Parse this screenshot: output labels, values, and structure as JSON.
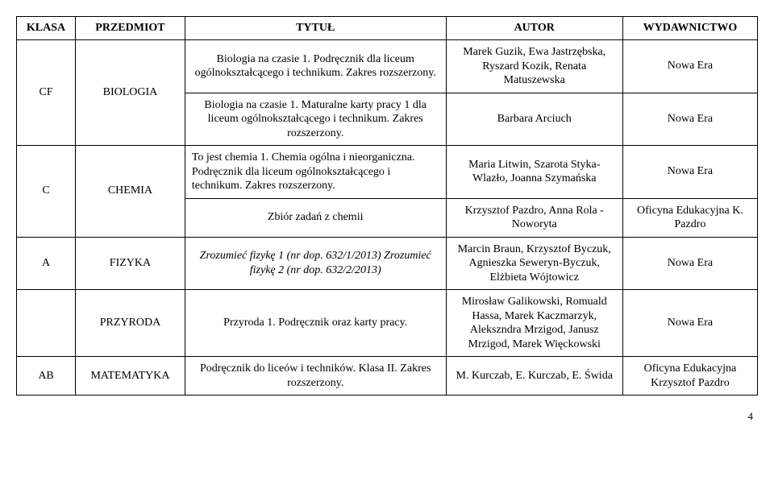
{
  "header": {
    "klasa": "KLASA",
    "przedmiot": "PRZEDMIOT",
    "tytul": "TYTUŁ",
    "autor": "AUTOR",
    "wyd": "WYDAWNICTWO"
  },
  "rows": {
    "r1": {
      "klasa": "CF",
      "przedmiot": "BIOLOGIA",
      "tytul": "Biologia na czasie 1. Podręcznik dla liceum ogólnokształcącego i technikum. Zakres rozszerzony.",
      "autor": "Marek Guzik, Ewa Jastrzębska, Ryszard Kozik, Renata Matuszewska",
      "wyd": "Nowa Era"
    },
    "r2": {
      "tytul": "Biologia na czasie 1. Maturalne karty pracy 1 dla liceum ogólnokształcącego i technikum. Zakres rozszerzony.",
      "autor": "Barbara Arciuch",
      "wyd": "Nowa Era"
    },
    "r3": {
      "klasa": "C",
      "przedmiot": "CHEMIA",
      "tytul": "To jest chemia 1. Chemia ogólna i nieorganiczna. Podręcznik dla liceum ogólnokształcącego i technikum. Zakres rozszerzony.",
      "autor": "Maria Litwin, Szarota Styka-Wlazło, Joanna Szymańska",
      "wyd": "Nowa Era"
    },
    "r4": {
      "tytul": "Zbiór zadań z chemii",
      "autor": "Krzysztof Pazdro, Anna Rola - Noworyta",
      "wyd": "Oficyna Edukacyjna K. Pazdro"
    },
    "r5": {
      "klasa": "A",
      "przedmiot": "FIZYKA",
      "tytul": "Zrozumieć fizykę 1 (nr dop. 632/1/2013) Zrozumieć fizykę 2 (nr dop. 632/2/2013)",
      "autor": "Marcin Braun, Krzysztof Byczuk, Agnieszka Seweryn-Byczuk, Elżbieta Wójtowicz",
      "wyd": "Nowa Era"
    },
    "r6": {
      "klasa": "",
      "przedmiot": "PRZYRODA",
      "tytul": "Przyroda 1. Podręcznik oraz karty pracy.",
      "autor": "Mirosław Galikowski, Romuald Hassa, Marek Kaczmarzyk, Alekszndra Mrzigod, Janusz Mrzigod, Marek Więckowski",
      "wyd": "Nowa Era"
    },
    "r7": {
      "klasa": "AB",
      "przedmiot": "MATEMATYKA",
      "tytul": "Podręcznik do liceów i techników. Klasa II. Zakres rozszerzony.",
      "autor": "M. Kurczab, E. Kurczab, E. Świda",
      "wyd": "Oficyna Edukacyjna Krzysztof Pazdro"
    }
  },
  "page_number": "4"
}
